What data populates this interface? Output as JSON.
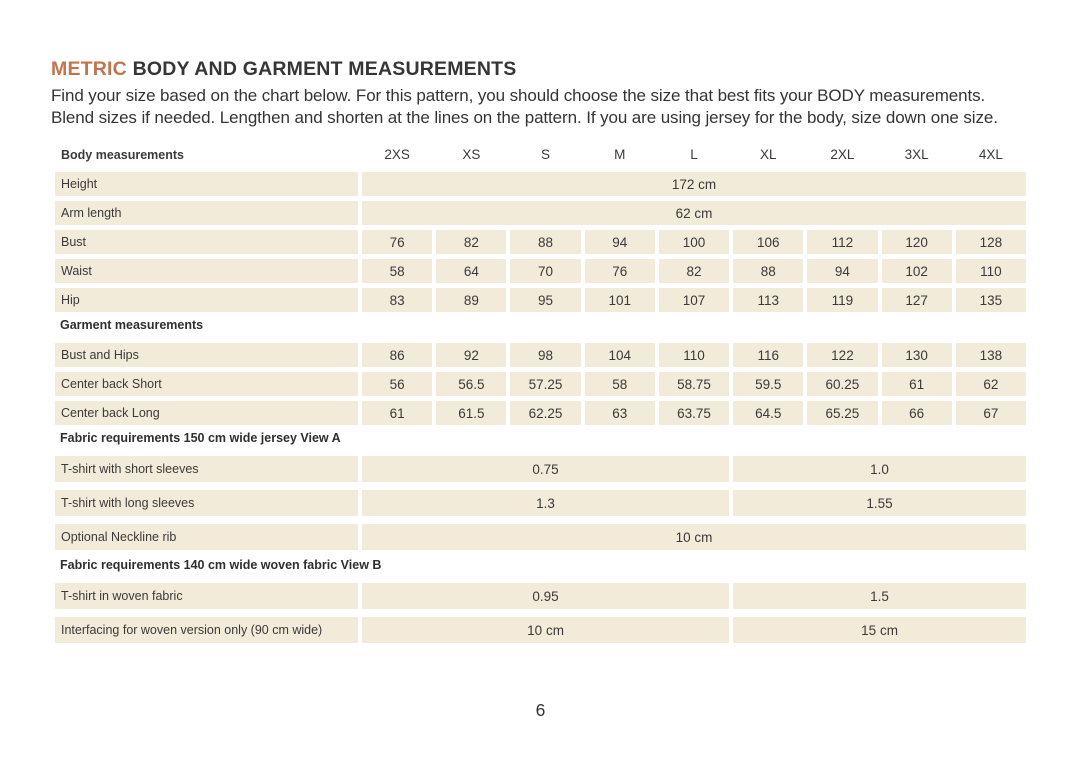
{
  "header": {
    "title_highlight": "METRIC",
    "title_rest": " BODY AND GARMENT MEASUREMENTS",
    "intro": "Find your size based on the chart below. For this pattern, you should choose the size that best fits your BODY measurements. Blend sizes if needed. Lengthen and shorten at the lines on the pattern. If you are using jersey for the body, size down one size."
  },
  "colors": {
    "accent": "#C1744E",
    "cell_background": "#F2EBDA",
    "text": "#3B3B3B"
  },
  "table": {
    "header_label": "Body measurements",
    "sizes": [
      "2XS",
      "XS",
      "S",
      "M",
      "L",
      "XL",
      "2XL",
      "3XL",
      "4XL"
    ],
    "sections": [
      {
        "title": "",
        "tall": false,
        "rows": [
          {
            "label": "Height",
            "cells": [
              {
                "text": "172 cm",
                "span": 9
              }
            ]
          },
          {
            "label": "Arm length",
            "cells": [
              {
                "text": "62 cm",
                "span": 9
              }
            ]
          },
          {
            "label": "Bust",
            "cells": [
              "76",
              "82",
              "88",
              "94",
              "100",
              "106",
              "112",
              "120",
              "128"
            ]
          },
          {
            "label": "Waist",
            "cells": [
              "58",
              "64",
              "70",
              "76",
              "82",
              "88",
              "94",
              "102",
              "110"
            ]
          },
          {
            "label": "Hip",
            "cells": [
              "83",
              "89",
              "95",
              "101",
              "107",
              "113",
              "119",
              "127",
              "135"
            ]
          }
        ]
      },
      {
        "title": "Garment measurements",
        "tall": false,
        "rows": [
          {
            "label": "Bust and Hips",
            "cells": [
              "86",
              "92",
              "98",
              "104",
              "110",
              "116",
              "122",
              "130",
              "138"
            ]
          },
          {
            "label": "Center back Short",
            "cells": [
              "56",
              "56.5",
              "57.25",
              "58",
              "58.75",
              "59.5",
              "60.25",
              "61",
              "62"
            ]
          },
          {
            "label": "Center back Long",
            "cells": [
              "61",
              "61.5",
              "62.25",
              "63",
              "63.75",
              "64.5",
              "65.25",
              "66",
              "67"
            ]
          }
        ]
      },
      {
        "title": "Fabric requirements 150 cm wide jersey View A",
        "tall": true,
        "rows": [
          {
            "label": "T-shirt with short sleeves",
            "cells": [
              {
                "text": "0.75",
                "span": 5
              },
              {
                "text": "1.0",
                "span": 4
              }
            ]
          },
          {
            "label": "T-shirt with long sleeves",
            "cells": [
              {
                "text": "1.3",
                "span": 5
              },
              {
                "text": "1.55",
                "span": 4
              }
            ]
          },
          {
            "label": "Optional Neckline rib",
            "cells": [
              {
                "text": "10 cm",
                "span": 9
              }
            ]
          }
        ]
      },
      {
        "title": "Fabric requirements 140 cm wide woven fabric View B",
        "tall": true,
        "rows": [
          {
            "label": "T-shirt in woven fabric",
            "cells": [
              {
                "text": "0.95",
                "span": 5
              },
              {
                "text": "1.5",
                "span": 4
              }
            ]
          },
          {
            "label": "Interfacing for woven version only (90 cm wide)",
            "cells": [
              {
                "text": "10 cm",
                "span": 5
              },
              {
                "text": "15 cm",
                "span": 4
              }
            ]
          }
        ]
      }
    ]
  },
  "footer": {
    "page_number": "6"
  }
}
